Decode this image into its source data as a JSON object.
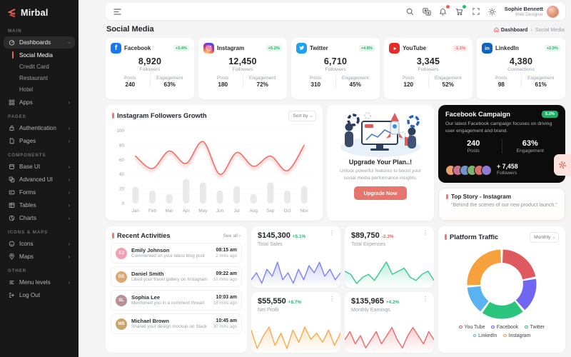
{
  "app": {
    "name": "Mirbal"
  },
  "sidebar": {
    "sections": [
      {
        "label": "MAIN",
        "items": [
          {
            "label": "Dashboards",
            "children": [
              "Social Media",
              "Credit Card",
              "Restaurant",
              "Hotel"
            ]
          },
          {
            "label": "Apps"
          }
        ]
      },
      {
        "label": "PAGES",
        "items": [
          {
            "label": "Authentication"
          },
          {
            "label": "Pages"
          }
        ]
      },
      {
        "label": "COMPONENTS",
        "items": [
          {
            "label": "Base UI"
          },
          {
            "label": "Advanced UI"
          },
          {
            "label": "Forms"
          },
          {
            "label": "Tables"
          },
          {
            "label": "Charts"
          }
        ]
      },
      {
        "label": "ICONS & MAPS",
        "items": [
          {
            "label": "Icons"
          },
          {
            "label": "Maps"
          }
        ]
      },
      {
        "label": "OTHER",
        "items": [
          {
            "label": "Menu levels"
          },
          {
            "label": "Log Out"
          }
        ]
      }
    ]
  },
  "header": {
    "user_name": "Sophie Bennett",
    "user_role": "Web Designer"
  },
  "page": {
    "title": "Social Media",
    "breadcrumb_home": "Dashboard",
    "breadcrumb_current": "Social Media"
  },
  "social_cards": [
    {
      "name": "Facebook",
      "change": "+3.4%",
      "value": "8,920",
      "value_label": "Followers",
      "posts_label": "Posts",
      "posts": "240",
      "engagement_label": "Engagement",
      "engagement": "63%"
    },
    {
      "name": "Instagram",
      "change": "+5.2%",
      "value": "12,450",
      "value_label": "Followers",
      "posts_label": "Posts",
      "posts": "180",
      "engagement_label": "Engagement",
      "engagement": "72%"
    },
    {
      "name": "Twitter",
      "change": "+4.8%",
      "value": "6,710",
      "value_label": "Followers",
      "posts_label": "Posts",
      "posts": "310",
      "engagement_label": "Engagement",
      "engagement": "45%"
    },
    {
      "name": "YouTube",
      "change": "-1.1%",
      "value": "3,345",
      "value_label": "Followers",
      "posts_label": "Posts",
      "posts": "120",
      "engagement_label": "Engagement",
      "engagement": "52%"
    },
    {
      "name": "LinkedIn",
      "change": "+2.9%",
      "value": "4,380",
      "value_label": "Connections",
      "posts_label": "Posts",
      "posts": "98",
      "engagement_label": "Engagement",
      "engagement": "61%"
    }
  ],
  "growth_card": {
    "title": "Instagram Followers Growth",
    "sort_label": "Sort by"
  },
  "upgrade": {
    "title": "Upgrade Your Plan..!",
    "text": "Unlock powerful features to boost your social media performance insights.",
    "button": "Upgrade Now"
  },
  "campaign": {
    "title": "Facebook Campaign",
    "badge": "5.2%",
    "description": "Our latest Facebook campaign focuses on driving user engagement and brand.",
    "posts": "240",
    "posts_label": "Posts",
    "engagement": "63%",
    "engagement_label": "Engagement",
    "followers": "+ 7,458",
    "followers_label": "Followers"
  },
  "top_story": {
    "title": "Top Story - Instagram",
    "text": "“Behind the scenes of our new product launch.”"
  },
  "activities": {
    "title": "Recent Activities",
    "see_all": "See all ›",
    "items": [
      {
        "name": "Emily Johnson",
        "action": "Commented on your latest blog post",
        "time": "08:15 am",
        "ago": "2 mins ago"
      },
      {
        "name": "Daniel Smith",
        "action": "Liked your travel gallery on Instagram",
        "time": "09:22 am",
        "ago": "10 mins ago"
      },
      {
        "name": "Sophia Lee",
        "action": "Mentioned you in a comment thread",
        "time": "10:03 am",
        "ago": "18 mins ago"
      },
      {
        "name": "Michael Brown",
        "action": "Shared your design mockup on Slack",
        "time": "10:45 am",
        "ago": "30 mins ago"
      }
    ]
  },
  "traffic_card": {
    "title": "Platform Traffic",
    "period": "Monthly"
  },
  "colors": {
    "accent": "#e8756c",
    "positive": "#27b26a",
    "negative": "#ea6060",
    "sidebar_bg": "#181818",
    "campaign_bg": "#0c0c0d"
  },
  "chart_data": {
    "growth": {
      "type": "line+bar",
      "title": "Instagram Followers Growth",
      "categories": [
        "Jan",
        "Feb",
        "Mar",
        "Apr",
        "May",
        "Jun",
        "Jul",
        "Aug",
        "Sep",
        "Oct",
        "Nov"
      ],
      "ylim": [
        0,
        100
      ],
      "yticks": [
        0,
        20,
        40,
        60,
        80,
        100
      ],
      "grid": "dotted horizontal",
      "series": [
        {
          "name": "followers-line",
          "type": "line",
          "color": "#ef6f68",
          "values": [
            65,
            48,
            72,
            55,
            85,
            40,
            70,
            51,
            65,
            45,
            80
          ]
        },
        {
          "name": "posts-bars",
          "type": "bar",
          "color": "#e9e9ec",
          "values": [
            23,
            18,
            13,
            34,
            29,
            18,
            24,
            13,
            29,
            18,
            24
          ]
        }
      ]
    },
    "platform_traffic": {
      "type": "donut",
      "title": "Platform Traffic",
      "legend_position": "bottom",
      "segments": [
        {
          "label": "You Tube",
          "value": 22,
          "color": "#df5a5f"
        },
        {
          "label": "Facebook",
          "value": 17,
          "color": "#7066f2"
        },
        {
          "label": "Twitter",
          "value": 21,
          "color": "#2bc47e"
        },
        {
          "label": "LinkedIn",
          "value": 14,
          "color": "#58b3f0"
        },
        {
          "label": "Instagram",
          "value": 26,
          "color": "#f7a13d"
        }
      ]
    },
    "stat_sparklines": [
      {
        "type": "area",
        "title": "Total Sales",
        "value": "$145,300",
        "change": "+5.1%",
        "color": "#7c83fb",
        "values": [
          3,
          5,
          2,
          6,
          4,
          8,
          3,
          5,
          2,
          6,
          3,
          7,
          5,
          8,
          4,
          6,
          3,
          5
        ]
      },
      {
        "type": "area",
        "title": "Total Expenses",
        "value": "$89,750",
        "change": "-2.3%",
        "color": "#34c98e",
        "values": [
          6,
          5,
          2,
          4,
          5,
          3,
          6,
          9,
          5,
          6,
          7,
          4,
          3,
          5,
          6,
          3
        ]
      },
      {
        "type": "area",
        "title": "Net Profit",
        "value": "$55,550",
        "change": "+8.7%",
        "color": "#f6ab4f",
        "values": [
          7,
          1,
          5,
          8,
          2,
          6,
          1,
          7,
          3,
          8,
          4,
          6,
          3,
          7,
          2,
          6
        ]
      },
      {
        "type": "area",
        "title": "Monthly Earnings",
        "value": "$135,965",
        "change": "+4.2%",
        "color": "#ee6a6a",
        "values": [
          5,
          7,
          4,
          6,
          3,
          5,
          7,
          4,
          6,
          8,
          5,
          3,
          6,
          8,
          6,
          4,
          7,
          5
        ]
      }
    ]
  }
}
